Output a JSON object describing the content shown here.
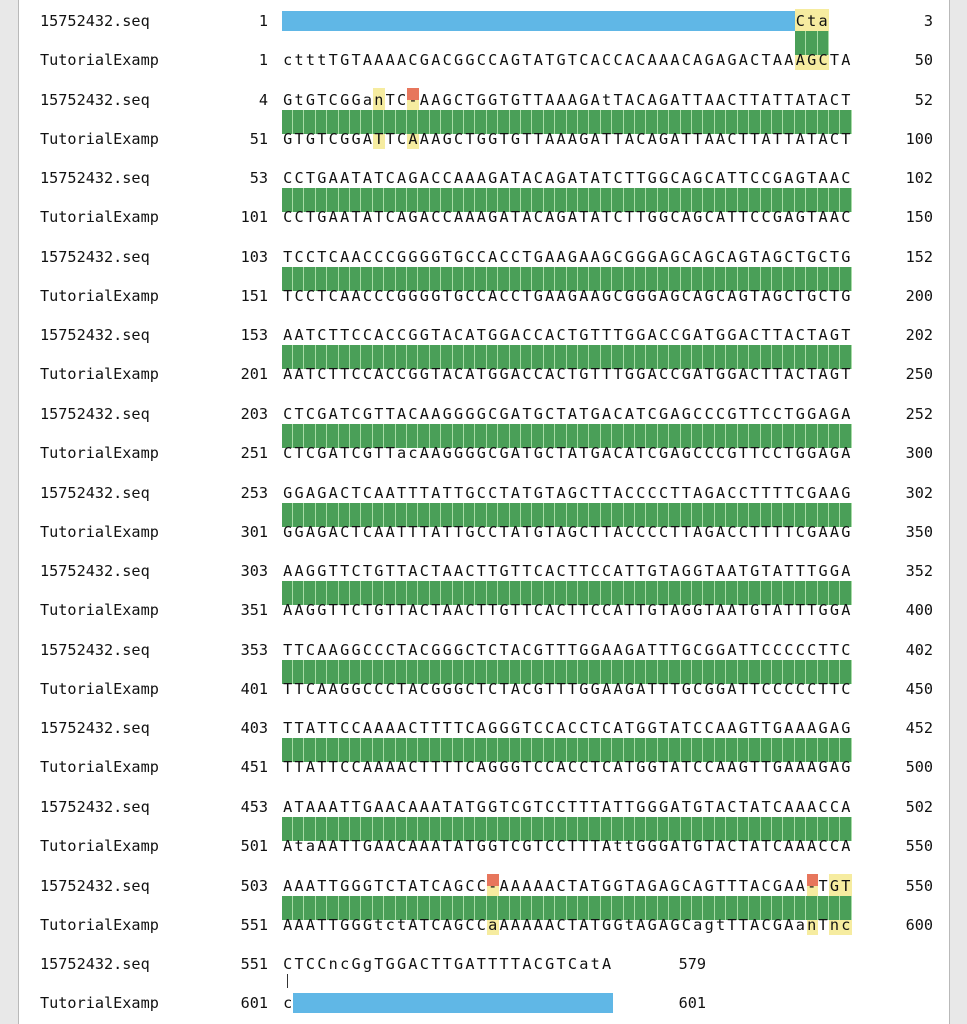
{
  "alignment": {
    "blocks": [
      {
        "q_name": "15752432.seq",
        "q_start": "1",
        "q_seq": "---------------------------------------------Cta",
        "q_end": "3",
        "s_name": "TutorialExamp",
        "s_start": "1",
        "s_seq": "ctttTGTAAAACGACGGCCAGTATGTCACCACAAACAGAGACTAAAGCTA",
        "s_end": "50"
      },
      {
        "q_name": "15752432.seq",
        "q_start": "4",
        "q_seq": "GtGTCGGanTC-AAGCTGGTGTTAAAGAtTACAGATTAACTTATTATACT",
        "q_end": "52",
        "s_name": "TutorialExamp",
        "s_start": "51",
        "s_seq": "GTGTCGGATTCAAAGCTGGTGTTAAAGATTACAGATTAACTTATTATACT",
        "s_end": "100"
      },
      {
        "q_name": "15752432.seq",
        "q_start": "53",
        "q_seq": "CCTGAATATCAGACCAAAGATACAGATATCTTGGCAGCATTCCGAGTAAC",
        "q_end": "102",
        "s_name": "TutorialExamp",
        "s_start": "101",
        "s_seq": "CCTGAATATCAGACCAAAGATACAGATATCTTGGCAGCATTCCGAGTAAC",
        "s_end": "150"
      },
      {
        "q_name": "15752432.seq",
        "q_start": "103",
        "q_seq": "TCCTCAACCCGGGGTGCCACCTGAAGAAGCGGGAGCAGCAGTAGCTGCTG",
        "q_end": "152",
        "s_name": "TutorialExamp",
        "s_start": "151",
        "s_seq": "TCCTCAACCCGGGGTGCCACCTGAAGAAGCGGGAGCAGCAGTAGCTGCTG",
        "s_end": "200"
      },
      {
        "q_name": "15752432.seq",
        "q_start": "153",
        "q_seq": "AATCTTCCACCGGTACATGGACCACTGTTTGGACCGATGGACTTACTAGT",
        "q_end": "202",
        "s_name": "TutorialExamp",
        "s_start": "201",
        "s_seq": "AATCTTCCACCGGTACATGGACCACTGTTTGGACCGATGGACTTACTAGT",
        "s_end": "250"
      },
      {
        "q_name": "15752432.seq",
        "q_start": "203",
        "q_seq": "CTCGATCGTTACAAGGGGCGATGCTATGACATCGAGCCCGTTCCTGGAGA",
        "q_end": "252",
        "s_name": "TutorialExamp",
        "s_start": "251",
        "s_seq": "CTCGATCGTTacAAGGGGCGATGCTATGACATCGAGCCCGTTCCTGGAGA",
        "s_end": "300"
      },
      {
        "q_name": "15752432.seq",
        "q_start": "253",
        "q_seq": "GGAGACTCAATTTATTGCCTATGTAGCTTACCCCTTAGACCTTTTCGAAG",
        "q_end": "302",
        "s_name": "TutorialExamp",
        "s_start": "301",
        "s_seq": "GGAGACTCAATTTATTGCCTATGTAGCTTACCCCTTAGACCTTTTCGAAG",
        "s_end": "350"
      },
      {
        "q_name": "15752432.seq",
        "q_start": "303",
        "q_seq": "AAGGTTCTGTTACTAACTTGTTCACTTCCATTGTAGGTAATGTATTTGGA",
        "q_end": "352",
        "s_name": "TutorialExamp",
        "s_start": "351",
        "s_seq": "AAGGTTCTGTTACTAACTTGTTCACTTCCATTGTAGGTAATGTATTTGGA",
        "s_end": "400"
      },
      {
        "q_name": "15752432.seq",
        "q_start": "353",
        "q_seq": "TTCAAGGCCCTACGGGCTCTACGTTTGGAAGATTTGCGGATTCCCCCTTC",
        "q_end": "402",
        "s_name": "TutorialExamp",
        "s_start": "401",
        "s_seq": "TTCAAGGCCCTACGGGCTCTACGTTTGGAAGATTTGCGGATTCCCCCTTC",
        "s_end": "450"
      },
      {
        "q_name": "15752432.seq",
        "q_start": "403",
        "q_seq": "TTATTCCAAAACTTTTCAGGGTCCACCTCATGGTATCCAAGTTGAAAGAG",
        "q_end": "452",
        "s_name": "TutorialExamp",
        "s_start": "451",
        "s_seq": "TTATTCCAAAACTTTTCAGGGTCCACCTCATGGTATCCAAGTTGAAAGAG",
        "s_end": "500"
      },
      {
        "q_name": "15752432.seq",
        "q_start": "453",
        "q_seq": "ATAAATTGAACAAATATGGTCGTCCTTTATTGGGATGTACTATCAAACCA",
        "q_end": "502",
        "s_name": "TutorialExamp",
        "s_start": "501",
        "s_seq": "AtaAATTGAACAAATATGGTCGTCCTTTAttGGGATGTACTATCAAACCA",
        "s_end": "550"
      },
      {
        "q_name": "15752432.seq",
        "q_start": "503",
        "q_seq": "AAATTGGGTCTATCAGCC-AAAAACTATGGTAGAGCAGTTTACGAA-TGT",
        "q_end": "550",
        "s_name": "TutorialExamp",
        "s_start": "551",
        "s_seq": "AAATTGGGtctATCAGCCaAAAAACTATGGtAGAGCagtTTACGAanTnc",
        "s_end": "600"
      },
      {
        "q_name": "15752432.seq",
        "q_start": "551",
        "q_seq": "CTCCncGgTGGACTTGATTTTACGTCatA",
        "q_end": "579",
        "s_name": "TutorialExamp",
        "s_start": "601",
        "s_seq": "c----------------------------",
        "s_end": "601"
      }
    ]
  },
  "colors": {
    "match_green": "#4a9f58",
    "gap_blue": "#60b7e6",
    "mismatch_yellow": "#f6eca0",
    "gap_red": "#e7765c",
    "ambiguous_purple": "#a98bc6"
  }
}
